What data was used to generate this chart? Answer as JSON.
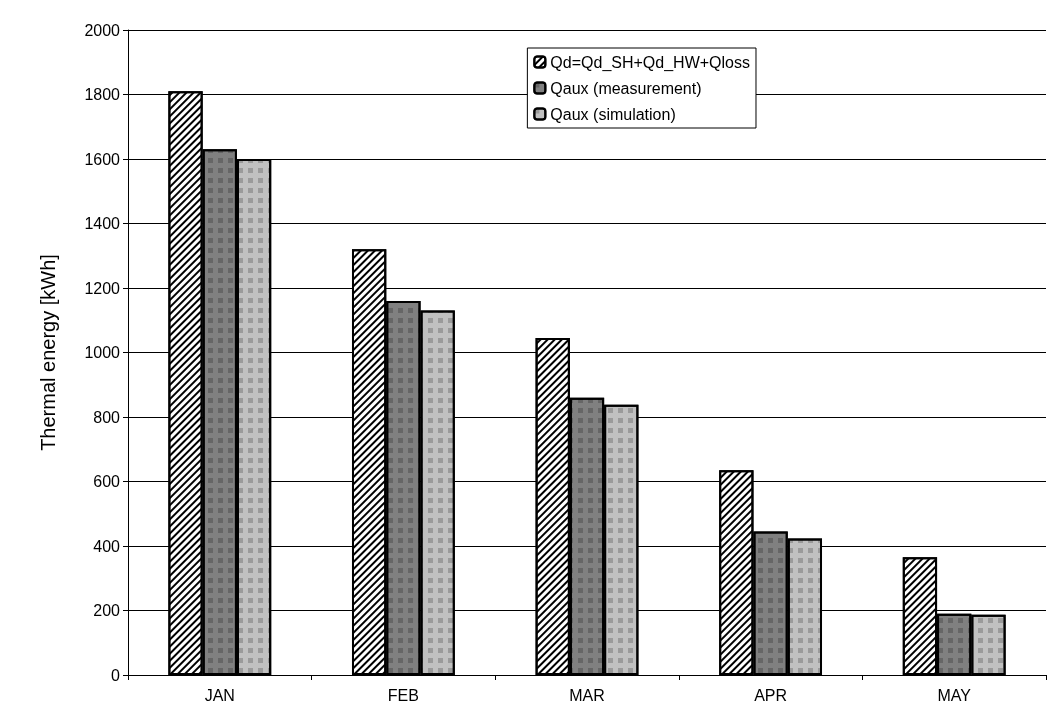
{
  "chart_data": {
    "type": "bar",
    "ylabel": "Thermal energy [kWh]",
    "categories": [
      "JAN",
      "FEB",
      "MAR",
      "APR",
      "MAY"
    ],
    "series": [
      {
        "name": "Qd=Qd_SH+Qd_HW+Qloss",
        "color": "#ffffff",
        "values": [
          1810,
          1320,
          1045,
          635,
          365
        ]
      },
      {
        "name": "Qaux (measurement)",
        "color": "#808080",
        "values": [
          1630,
          1160,
          860,
          445,
          190
        ]
      },
      {
        "name": "Qaux (simulation)",
        "color": "#c0c0c0",
        "values": [
          1600,
          1130,
          838,
          423,
          187
        ]
      }
    ],
    "ylim": [
      0,
      2000
    ],
    "yticks": [
      0,
      200,
      400,
      600,
      800,
      1000,
      1200,
      1400,
      1600,
      1800,
      2000
    ],
    "grid": "y",
    "legend": "top right"
  }
}
